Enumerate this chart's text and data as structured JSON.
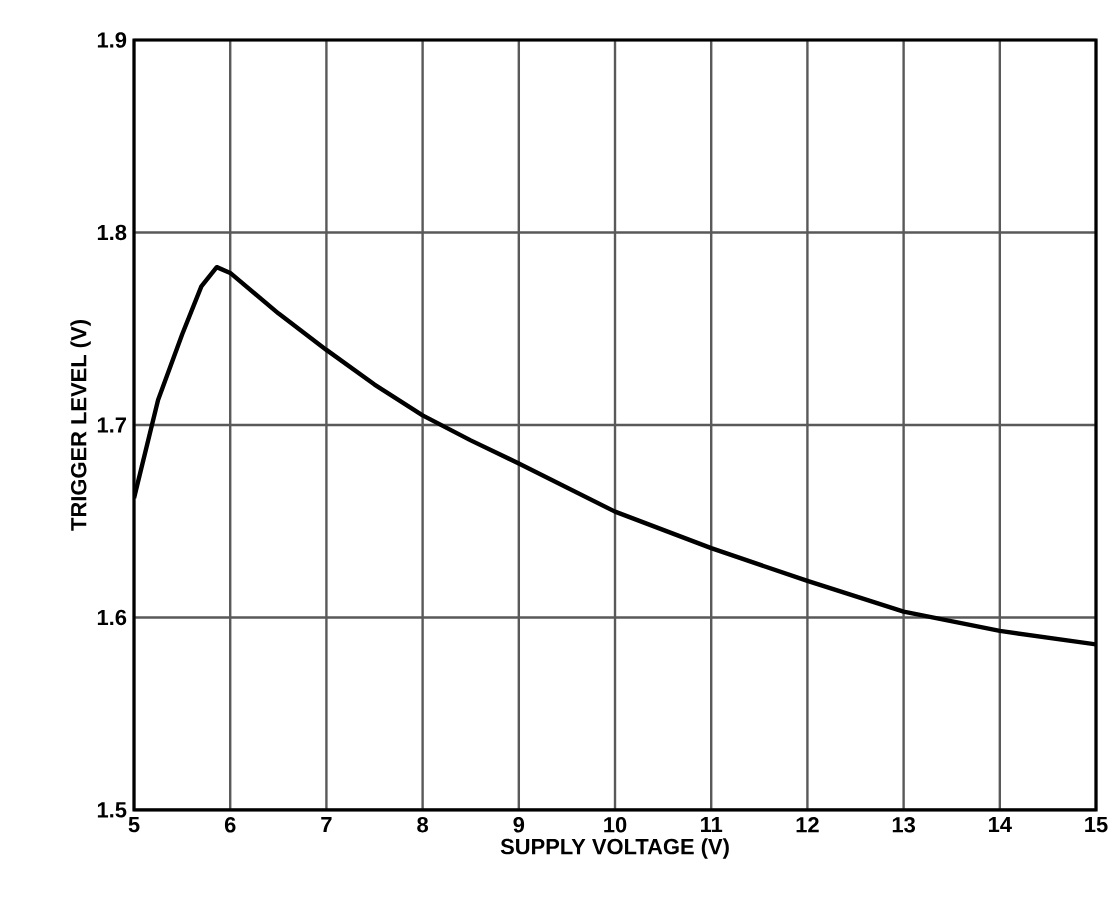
{
  "chart_data": {
    "type": "line",
    "xlabel": "SUPPLY VOLTAGE (V)",
    "ylabel": "TRIGGER LEVEL (V)",
    "x": [
      5,
      5.25,
      5.5,
      5.7,
      5.86,
      6,
      6.5,
      7,
      7.5,
      8,
      8.5,
      9,
      10,
      11,
      12,
      13,
      14,
      15
    ],
    "series": [
      {
        "color": "#000000",
        "values": [
          1.662,
          1.713,
          1.747,
          1.772,
          1.782,
          1.779,
          1.758,
          1.739,
          1.721,
          1.705,
          1.692,
          1.68,
          1.655,
          1.636,
          1.619,
          1.603,
          1.593,
          1.586
        ]
      }
    ],
    "xlim": [
      5,
      15
    ],
    "ylim": [
      1.5,
      1.9
    ],
    "xticks": [
      5,
      6,
      7,
      8,
      9,
      10,
      11,
      12,
      13,
      14,
      15
    ],
    "yticks": [
      {
        "value": 1.5,
        "label": "1.5"
      },
      {
        "value": 1.6,
        "label": "1.6"
      },
      {
        "value": 1.7,
        "label": "1.7"
      },
      {
        "value": 1.8,
        "label": "1.8"
      },
      {
        "value": 1.9,
        "label": "1.9"
      }
    ],
    "grid": true,
    "marker": "none",
    "line_style": "solid"
  }
}
